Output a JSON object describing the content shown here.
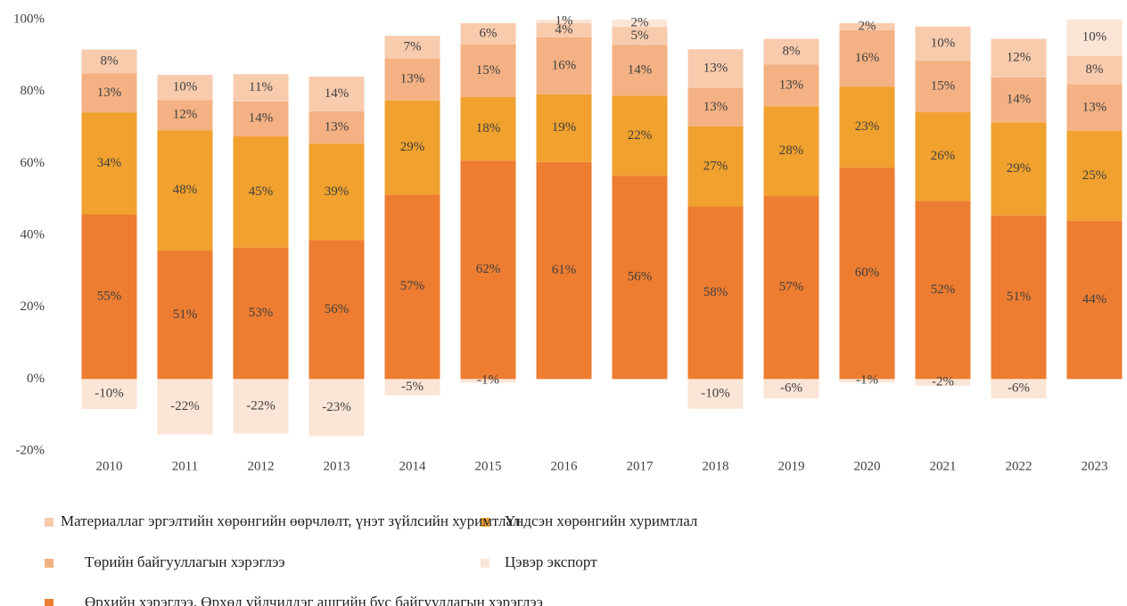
{
  "chart_data": {
    "type": "bar",
    "stack": "percent",
    "categories": [
      "2010",
      "2011",
      "2012",
      "2013",
      "2014",
      "2015",
      "2016",
      "2017",
      "2018",
      "2019",
      "2020",
      "2021",
      "2022",
      "2023"
    ],
    "series": [
      {
        "name": "Өрхийн хэрэглээ, Өрхөд үйлчилдэг ашгийн бус байгууллагын хэрэглээ",
        "color": "#ED7D31",
        "values": [
          55,
          51,
          53,
          56,
          57,
          62,
          61,
          56,
          58,
          57,
          60,
          52,
          51,
          44
        ],
        "value_labels": [
          "55%",
          "51%",
          "53%",
          "56%",
          "57%",
          "62%",
          "61%",
          "56%",
          "58%",
          "57%",
          "60%",
          "52%",
          "51%",
          "44%"
        ]
      },
      {
        "name": "Үндсэн хөрөнгийн хуримтлал",
        "color": "#F0A12E",
        "values": [
          34,
          48,
          45,
          39,
          29,
          18,
          19,
          22,
          27,
          28,
          23,
          26,
          29,
          25
        ],
        "value_labels": [
          "34%",
          "48%",
          "45%",
          "39%",
          "29%",
          "18%",
          "19%",
          "22%",
          "27%",
          "28%",
          "23%",
          "26%",
          "29%",
          "25%"
        ]
      },
      {
        "name": "Төрийн байгууллагын хэрэглээ",
        "color": "#F4B183",
        "values": [
          13,
          12,
          14,
          13,
          13,
          15,
          16,
          14,
          13,
          13,
          16,
          15,
          14,
          13
        ],
        "value_labels": [
          "13%",
          "12%",
          "14%",
          "13%",
          "13%",
          "15%",
          "16%",
          "14%",
          "13%",
          "13%",
          "16%",
          "15%",
          "14%",
          "13%"
        ]
      },
      {
        "name": "Материаллаг эргэлтийн хөрөнгийн өөрчлөлт, үнэт зүйлсийн хуримтлал",
        "color": "#F8CBAD",
        "values": [
          8,
          10,
          11,
          14,
          7,
          6,
          4,
          5,
          13,
          8,
          2,
          10,
          12,
          8
        ],
        "value_labels": [
          "8%",
          "10%",
          "11%",
          "14%",
          "7%",
          "6%",
          "4%",
          "5%",
          "13%",
          "8%",
          "2%",
          "10%",
          "12%",
          "8%"
        ]
      },
      {
        "name": "Цэвэр экспорт",
        "color": "#FBE5D6",
        "values": [
          -10,
          -22,
          -22,
          -23,
          -5,
          -1,
          1,
          2,
          -10,
          -6,
          -1,
          -2,
          -6,
          10
        ],
        "value_labels": [
          "-10%",
          "-22%",
          "-22%",
          "-23%",
          "-5%",
          "-1%",
          "1%",
          "2%",
          "-10%",
          "-6%",
          "-1%",
          "-2%",
          "-6%",
          "10%"
        ]
      }
    ],
    "ylim": [
      -20,
      100
    ],
    "yticks": [
      {
        "value": -20,
        "label": "-20%"
      },
      {
        "value": 0,
        "label": "0%"
      },
      {
        "value": 20,
        "label": "20%"
      },
      {
        "value": 40,
        "label": "40%"
      },
      {
        "value": 60,
        "label": "60%"
      },
      {
        "value": 80,
        "label": "80%"
      },
      {
        "value": 100,
        "label": "100%"
      }
    ],
    "grid": false
  }
}
